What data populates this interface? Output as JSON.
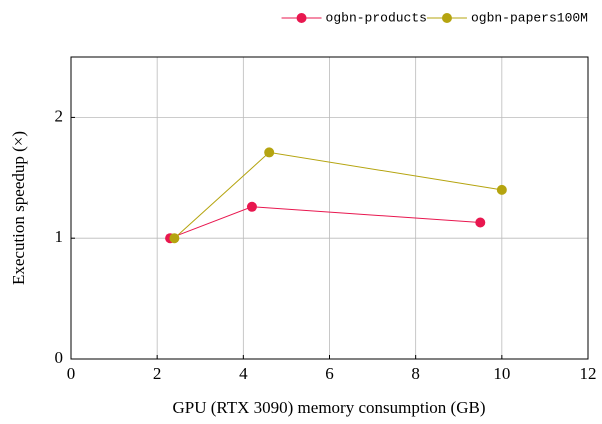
{
  "chart_data": {
    "type": "line",
    "x_label": "GPU (RTX 3090) memory consumption (GB)",
    "y_label": "Execution speedup (×)",
    "xlim": [
      0,
      12
    ],
    "xticks": [
      0,
      2,
      4,
      6,
      8,
      10,
      12
    ],
    "ylim": [
      0,
      2.5
    ],
    "yticks": [
      0,
      1,
      2
    ],
    "grid": true,
    "legend": "top right",
    "series": [
      {
        "name": "ogbn-products",
        "color": "#e8174f",
        "x": [
          2.3,
          4.2,
          9.5
        ],
        "values": [
          1.0,
          1.26,
          1.13
        ]
      },
      {
        "name": "ogbn-papers100M",
        "color": "#b5a40f",
        "x": [
          2.4,
          4.6,
          10.0
        ],
        "values": [
          1.0,
          1.71,
          1.4
        ]
      }
    ]
  }
}
